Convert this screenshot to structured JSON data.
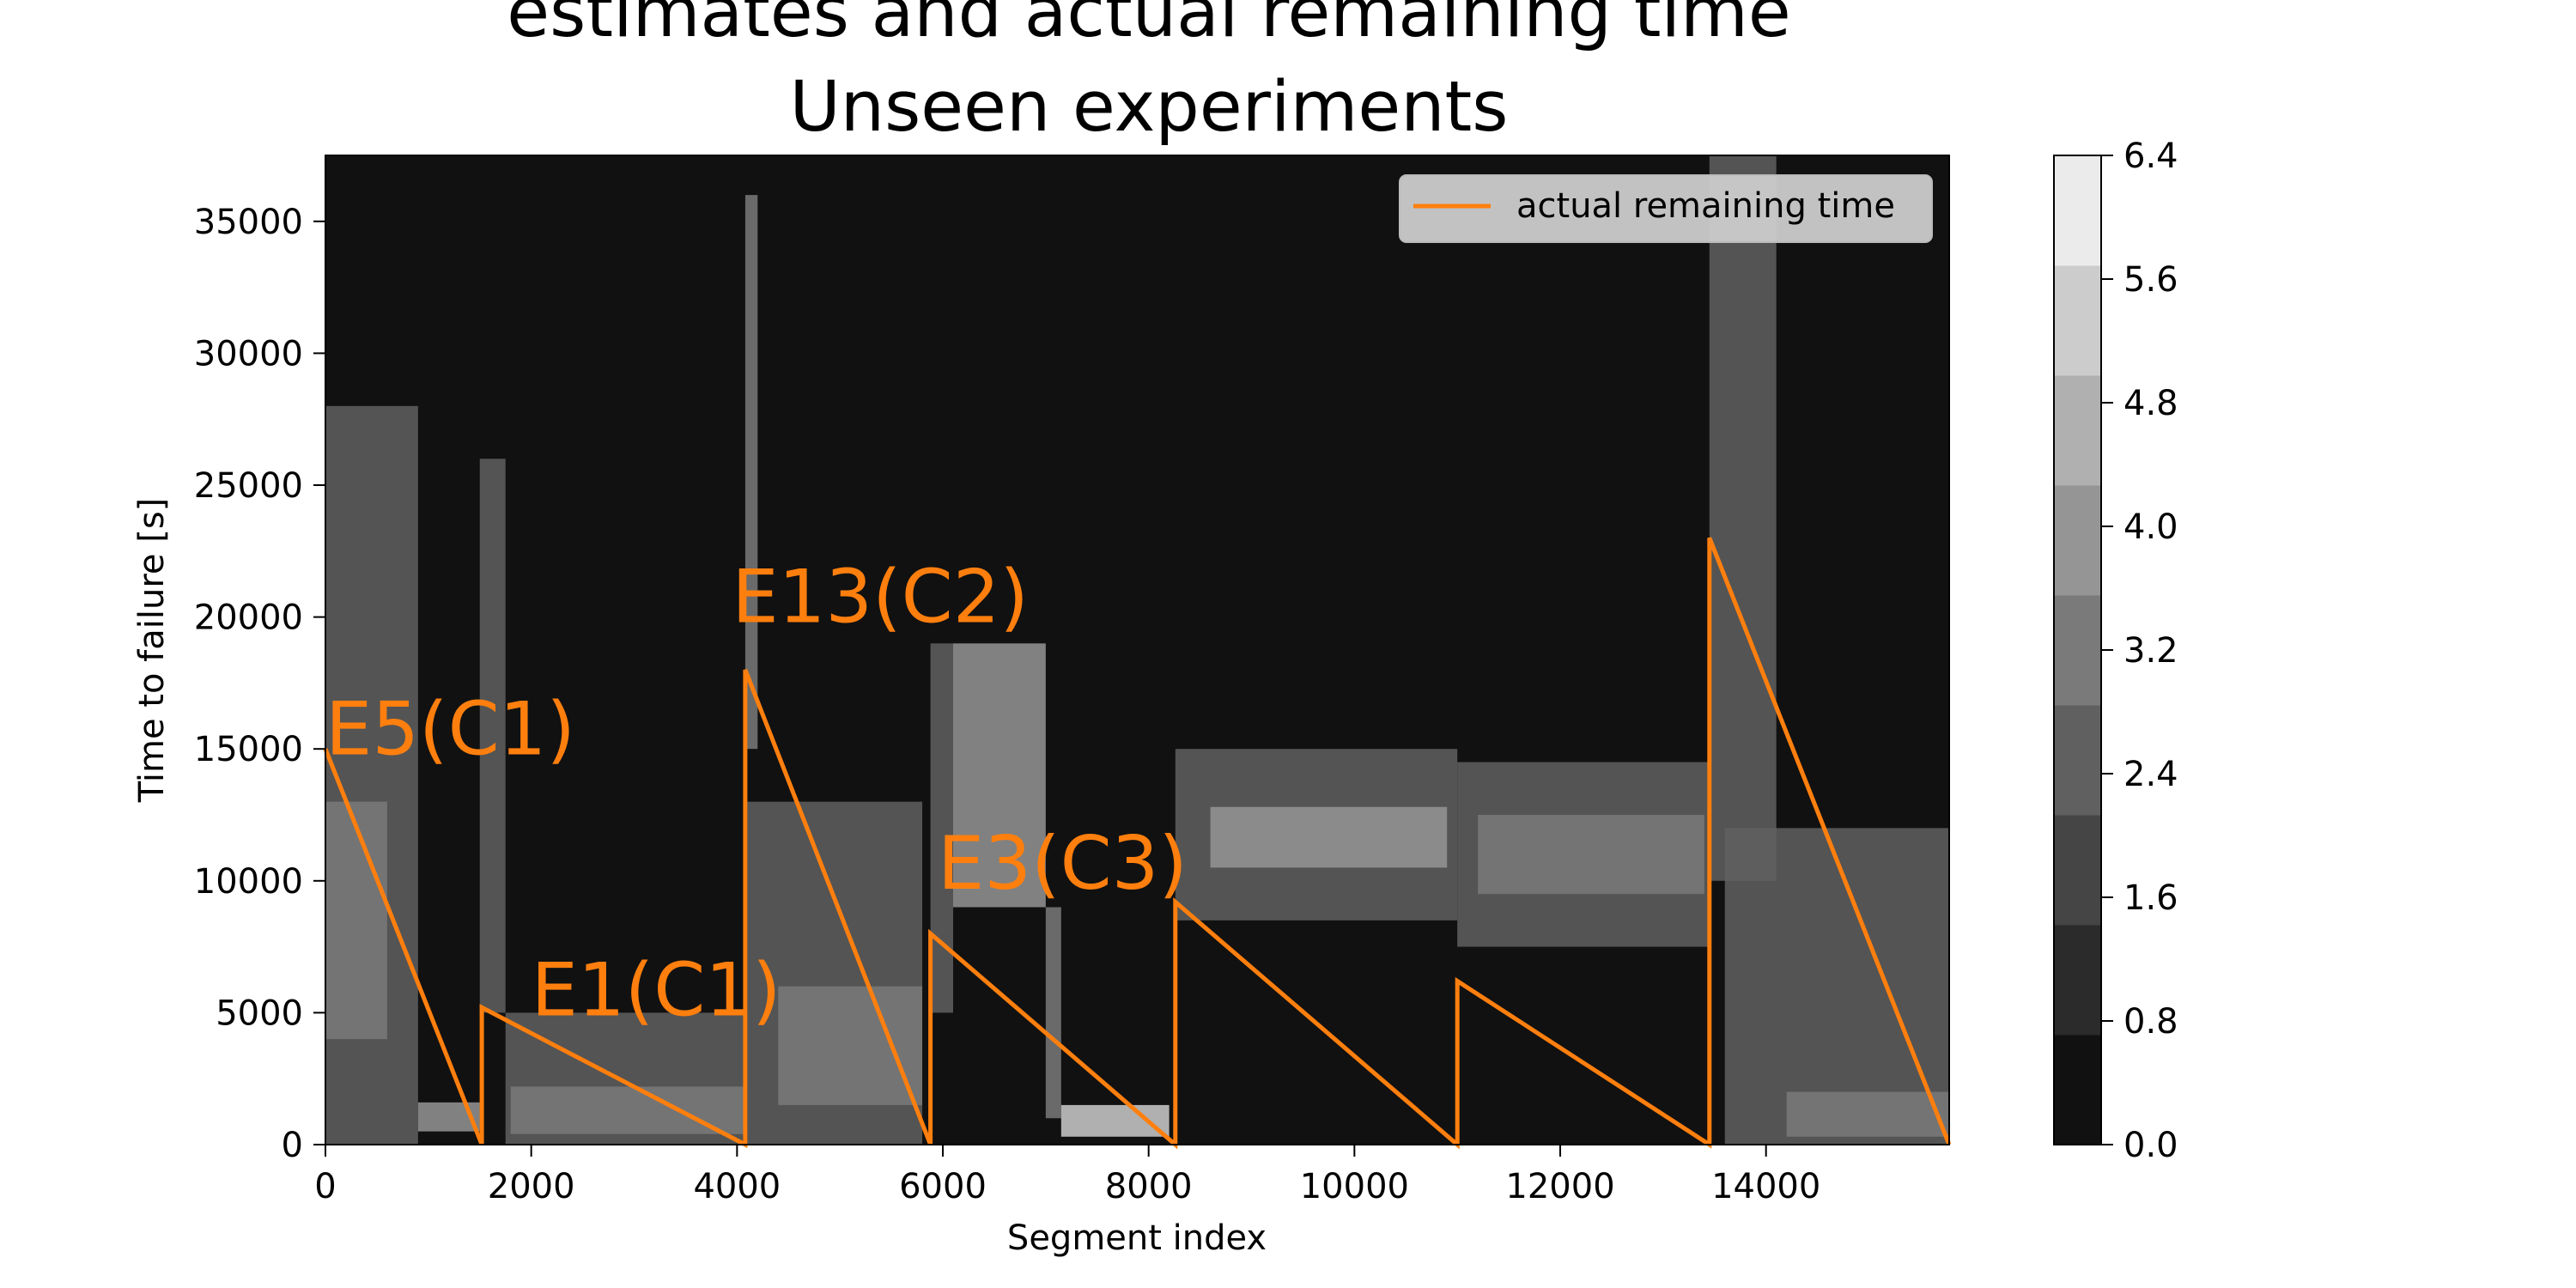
{
  "chart_data": {
    "type": "heatmap",
    "title_lines": [
      "estimates and actual remaining time",
      "Unseen experiments"
    ],
    "xlabel": "Segment index",
    "ylabel": "Time to failure [s]",
    "xlim": [
      0,
      15780
    ],
    "ylim": [
      0,
      37500
    ],
    "xticks": [
      0,
      2000,
      4000,
      6000,
      8000,
      10000,
      12000,
      14000
    ],
    "yticks": [
      0,
      5000,
      10000,
      15000,
      20000,
      25000,
      30000,
      35000
    ],
    "grid": false,
    "legend": {
      "placement": "upper right",
      "entries": [
        {
          "label": "actual remaining time",
          "color": "#ff7f0e"
        }
      ]
    },
    "colorbar": {
      "ticks": [
        "0.0",
        "0.8",
        "1.6",
        "2.4",
        "3.2",
        "4.0",
        "4.8",
        "5.6",
        "6.4"
      ],
      "levels": [
        "#111111",
        "#2b2b2b",
        "#454545",
        "#606060",
        "#7a7a7a",
        "#959595",
        "#b0b0b0",
        "#cccccc",
        "#ebebeb"
      ]
    },
    "background_color": "#111111",
    "series": [
      {
        "name": "actual remaining time",
        "color": "#ff7f0e",
        "x": [
          0,
          1520,
          1520,
          4080,
          4080,
          5880,
          5880,
          8260,
          8260,
          11000,
          11000,
          13450,
          13450,
          15780
        ],
        "y": [
          15000,
          0,
          5200,
          0,
          18000,
          0,
          8000,
          0,
          9200,
          0,
          6200,
          0,
          23000,
          0
        ]
      }
    ],
    "estimate_bands": [
      {
        "x0": 0,
        "x1": 900,
        "y0": 0,
        "y1": 28000,
        "level": 3
      },
      {
        "x0": 0,
        "x1": 600,
        "y0": 4000,
        "y1": 13000,
        "level": 4
      },
      {
        "x0": 900,
        "x1": 1500,
        "y0": 500,
        "y1": 1600,
        "level": 5
      },
      {
        "x0": 1500,
        "x1": 1750,
        "y0": 5000,
        "y1": 26000,
        "level": 3
      },
      {
        "x0": 1750,
        "x1": 4080,
        "y0": 0,
        "y1": 5000,
        "level": 3
      },
      {
        "x0": 1800,
        "x1": 4080,
        "y0": 400,
        "y1": 2200,
        "level": 4
      },
      {
        "x0": 4080,
        "x1": 4200,
        "y0": 15000,
        "y1": 36000,
        "level": 4
      },
      {
        "x0": 4100,
        "x1": 5800,
        "y0": 0,
        "y1": 13000,
        "level": 3
      },
      {
        "x0": 4400,
        "x1": 5800,
        "y0": 1500,
        "y1": 6000,
        "level": 4
      },
      {
        "x0": 5880,
        "x1": 6100,
        "y0": 5000,
        "y1": 19000,
        "level": 3
      },
      {
        "x0": 6100,
        "x1": 7000,
        "y0": 9000,
        "y1": 19000,
        "level": 5
      },
      {
        "x0": 7000,
        "x1": 7150,
        "y0": 1000,
        "y1": 9000,
        "level": 4
      },
      {
        "x0": 7150,
        "x1": 8200,
        "y0": 300,
        "y1": 1500,
        "level": 7
      },
      {
        "x0": 8260,
        "x1": 11000,
        "y0": 8500,
        "y1": 15000,
        "level": 3
      },
      {
        "x0": 8600,
        "x1": 10900,
        "y0": 10500,
        "y1": 12800,
        "level": 5
      },
      {
        "x0": 11000,
        "x1": 13450,
        "y0": 7500,
        "y1": 14500,
        "level": 3
      },
      {
        "x0": 11200,
        "x1": 13400,
        "y0": 9500,
        "y1": 12500,
        "level": 4
      },
      {
        "x0": 13450,
        "x1": 14100,
        "y0": 10000,
        "y1": 37500,
        "level": 3
      },
      {
        "x0": 13600,
        "x1": 15780,
        "y0": 0,
        "y1": 12000,
        "level": 3
      },
      {
        "x0": 14200,
        "x1": 15780,
        "y0": 300,
        "y1": 2000,
        "level": 4
      }
    ],
    "annotations": [
      {
        "text": "E5(C1)",
        "x": 0,
        "y": 14800,
        "color": "#ff7f0e"
      },
      {
        "text": "E1(C1)",
        "x": 2000,
        "y": 4900,
        "color": "#ff7f0e"
      },
      {
        "text": "E13(C2)",
        "x": 3950,
        "y": 19800,
        "color": "#ff7f0e"
      },
      {
        "text": "E3(C3)",
        "x": 5950,
        "y": 9700,
        "color": "#ff7f0e"
      }
    ]
  }
}
